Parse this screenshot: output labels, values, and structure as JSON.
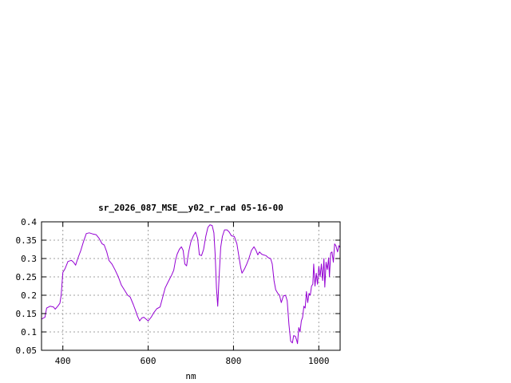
{
  "chart_data": {
    "type": "line",
    "title": "sr_2026_087_MSE__y02_r_rad 05-16-00",
    "xlabel": "nm",
    "ylabel": "",
    "xlim": [
      350,
      1050
    ],
    "ylim": [
      0.05,
      0.4
    ],
    "xticks": [
      400,
      600,
      800,
      1000
    ],
    "xtick_labels": [
      "400",
      "600",
      "800",
      "1000"
    ],
    "yticks": [
      0.05,
      0.1,
      0.15,
      0.2,
      0.25,
      0.3,
      0.35,
      0.4
    ],
    "ytick_labels": [
      "0.05",
      "0.1",
      "0.15",
      "0.2",
      "0.25",
      "0.3",
      "0.35",
      "0.4"
    ],
    "grid": true,
    "grid_style": "dotted",
    "line_color": "#9400d3",
    "series": [
      {
        "values": [
          [
            350,
            0.135
          ],
          [
            358,
            0.14
          ],
          [
            362,
            0.165
          ],
          [
            370,
            0.17
          ],
          [
            378,
            0.168
          ],
          [
            382,
            0.162
          ],
          [
            388,
            0.17
          ],
          [
            393,
            0.178
          ],
          [
            396,
            0.2
          ],
          [
            400,
            0.262
          ],
          [
            405,
            0.272
          ],
          [
            412,
            0.292
          ],
          [
            420,
            0.295
          ],
          [
            425,
            0.29
          ],
          [
            430,
            0.282
          ],
          [
            435,
            0.3
          ],
          [
            442,
            0.322
          ],
          [
            448,
            0.345
          ],
          [
            455,
            0.368
          ],
          [
            462,
            0.37
          ],
          [
            470,
            0.367
          ],
          [
            478,
            0.365
          ],
          [
            485,
            0.355
          ],
          [
            492,
            0.34
          ],
          [
            497,
            0.337
          ],
          [
            503,
            0.318
          ],
          [
            508,
            0.295
          ],
          [
            515,
            0.285
          ],
          [
            522,
            0.27
          ],
          [
            530,
            0.25
          ],
          [
            537,
            0.228
          ],
          [
            545,
            0.213
          ],
          [
            552,
            0.2
          ],
          [
            558,
            0.195
          ],
          [
            565,
            0.175
          ],
          [
            570,
            0.16
          ],
          [
            575,
            0.143
          ],
          [
            580,
            0.13
          ],
          [
            585,
            0.138
          ],
          [
            590,
            0.14
          ],
          [
            595,
            0.135
          ],
          [
            600,
            0.13
          ],
          [
            607,
            0.14
          ],
          [
            613,
            0.152
          ],
          [
            620,
            0.163
          ],
          [
            628,
            0.168
          ],
          [
            633,
            0.19
          ],
          [
            640,
            0.22
          ],
          [
            647,
            0.237
          ],
          [
            655,
            0.255
          ],
          [
            660,
            0.268
          ],
          [
            664,
            0.295
          ],
          [
            668,
            0.312
          ],
          [
            673,
            0.325
          ],
          [
            678,
            0.332
          ],
          [
            682,
            0.322
          ],
          [
            686,
            0.285
          ],
          [
            690,
            0.28
          ],
          [
            695,
            0.318
          ],
          [
            700,
            0.345
          ],
          [
            706,
            0.362
          ],
          [
            711,
            0.372
          ],
          [
            716,
            0.355
          ],
          [
            720,
            0.31
          ],
          [
            725,
            0.308
          ],
          [
            730,
            0.325
          ],
          [
            735,
            0.36
          ],
          [
            740,
            0.385
          ],
          [
            745,
            0.392
          ],
          [
            750,
            0.39
          ],
          [
            754,
            0.37
          ],
          [
            757,
            0.31
          ],
          [
            760,
            0.22
          ],
          [
            763,
            0.17
          ],
          [
            766,
            0.245
          ],
          [
            770,
            0.33
          ],
          [
            774,
            0.36
          ],
          [
            779,
            0.378
          ],
          [
            785,
            0.378
          ],
          [
            790,
            0.372
          ],
          [
            795,
            0.362
          ],
          [
            802,
            0.36
          ],
          [
            808,
            0.34
          ],
          [
            813,
            0.303
          ],
          [
            817,
            0.275
          ],
          [
            820,
            0.26
          ],
          [
            826,
            0.272
          ],
          [
            831,
            0.285
          ],
          [
            836,
            0.3
          ],
          [
            842,
            0.322
          ],
          [
            848,
            0.332
          ],
          [
            853,
            0.322
          ],
          [
            857,
            0.31
          ],
          [
            861,
            0.318
          ],
          [
            866,
            0.312
          ],
          [
            870,
            0.31
          ],
          [
            876,
            0.308
          ],
          [
            882,
            0.302
          ],
          [
            887,
            0.3
          ],
          [
            891,
            0.285
          ],
          [
            895,
            0.24
          ],
          [
            899,
            0.215
          ],
          [
            904,
            0.205
          ],
          [
            908,
            0.2
          ],
          [
            912,
            0.18
          ],
          [
            917,
            0.198
          ],
          [
            922,
            0.2
          ],
          [
            926,
            0.185
          ],
          [
            930,
            0.12
          ],
          [
            934,
            0.075
          ],
          [
            938,
            0.07
          ],
          [
            941,
            0.09
          ],
          [
            945,
            0.088
          ],
          [
            948,
            0.078
          ],
          [
            950,
            0.068
          ],
          [
            953,
            0.112
          ],
          [
            956,
            0.1
          ],
          [
            959,
            0.13
          ],
          [
            962,
            0.14
          ],
          [
            965,
            0.17
          ],
          [
            968,
            0.165
          ],
          [
            971,
            0.21
          ],
          [
            974,
            0.18
          ],
          [
            977,
            0.205
          ],
          [
            980,
            0.2
          ],
          [
            983,
            0.225
          ],
          [
            986,
            0.23
          ],
          [
            988,
            0.285
          ],
          [
            991,
            0.225
          ],
          [
            994,
            0.26
          ],
          [
            997,
            0.23
          ],
          [
            1000,
            0.278
          ],
          [
            1003,
            0.25
          ],
          [
            1006,
            0.285
          ],
          [
            1009,
            0.24
          ],
          [
            1012,
            0.3
          ],
          [
            1014,
            0.222
          ],
          [
            1017,
            0.29
          ],
          [
            1020,
            0.27
          ],
          [
            1023,
            0.302
          ],
          [
            1025,
            0.25
          ],
          [
            1028,
            0.315
          ],
          [
            1031,
            0.318
          ],
          [
            1034,
            0.29
          ],
          [
            1037,
            0.34
          ],
          [
            1040,
            0.335
          ],
          [
            1044,
            0.318
          ],
          [
            1047,
            0.335
          ],
          [
            1050,
            0.33
          ]
        ]
      }
    ]
  }
}
